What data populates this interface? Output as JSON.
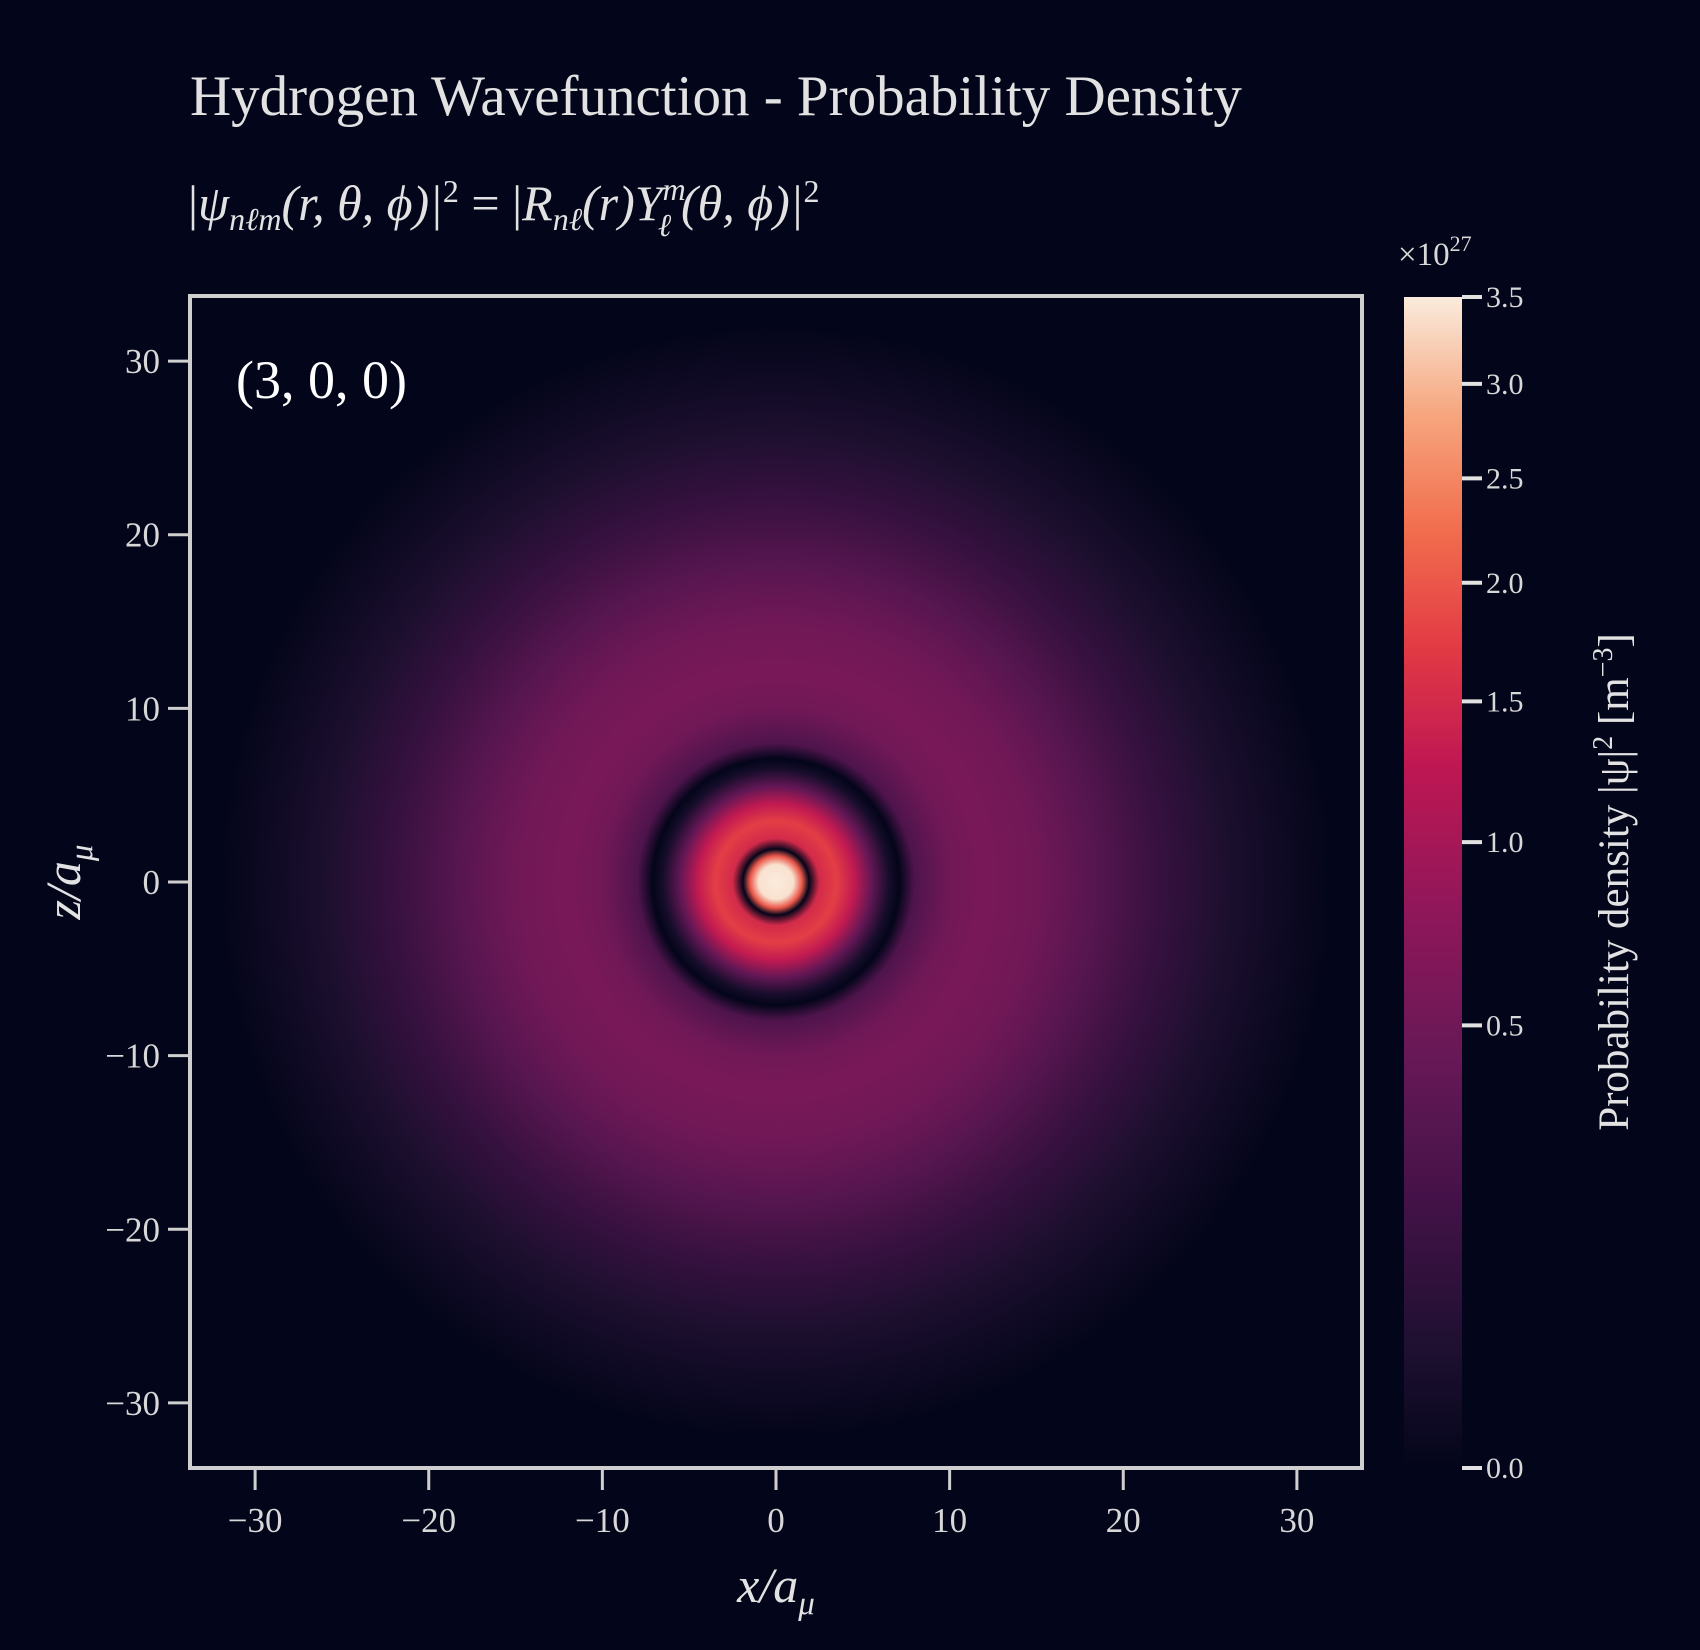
{
  "chart_data": {
    "type": "heatmap",
    "title": "Hydrogen Wavefunction - Probability Density",
    "subtitle_parts": {
      "lhs_open": "|",
      "psi": "ψ",
      "psi_sub": "nℓm",
      "args": "(r, θ, ϕ)|",
      "pow": "2",
      "eq": " = |",
      "R": "R",
      "R_sub": "nℓ",
      "r_arg": "(r)",
      "Y": "Y",
      "Y_sup": "m",
      "Y_sub": "ℓ",
      "Y_args": "(θ, ϕ)|",
      "pow2": "2"
    },
    "annotation": "(3, 0, 0)",
    "quantum_numbers": {
      "n": 3,
      "l": 0,
      "m": 0
    },
    "xlabel": {
      "main": "x/a",
      "sub": "μ"
    },
    "ylabel": {
      "main": "z/a",
      "sub": "μ"
    },
    "xlim": [
      -33.75,
      33.75
    ],
    "ylim": [
      -33.75,
      33.75
    ],
    "xticks": [
      -30,
      -20,
      -10,
      0,
      10,
      20,
      30
    ],
    "yticks": [
      -30,
      -20,
      -10,
      0,
      10,
      20,
      30
    ],
    "xtick_labels": [
      "−30",
      "−20",
      "−10",
      "0",
      "10",
      "20",
      "30"
    ],
    "ytick_labels": [
      "−30",
      "−20",
      "−10",
      "0",
      "10",
      "20",
      "30"
    ],
    "colorbar": {
      "label_main": "Probability density |ψ|",
      "label_pow": "2",
      "label_unit": " [m",
      "label_unit_pow": "−3",
      "label_close": "]",
      "multiplier": "×10",
      "multiplier_pow": "27",
      "range": [
        0.0,
        3.5
      ],
      "scale": "power",
      "ticks": [
        0.0,
        0.5,
        1.0,
        1.5,
        2.0,
        2.5,
        3.0,
        3.5
      ],
      "tick_labels": [
        "0.0",
        "0.5",
        "1.0",
        "1.5",
        "2.0",
        "2.5",
        "3.0",
        "3.5"
      ],
      "colormap": "rocket"
    },
    "radial_profile": {
      "r": [
        0,
        1.0,
        1.5,
        1.9,
        2.5,
        3.5,
        4.5,
        5.5,
        6.5,
        7.1,
        8.0,
        10,
        12,
        15,
        18,
        22,
        26,
        32
      ],
      "value": [
        3.5,
        3.4,
        2.0,
        0.0,
        1.5,
        1.75,
        1.3,
        0.4,
        0.02,
        0.0,
        0.25,
        0.5,
        0.58,
        0.5,
        0.32,
        0.12,
        0.03,
        0.0
      ]
    }
  }
}
